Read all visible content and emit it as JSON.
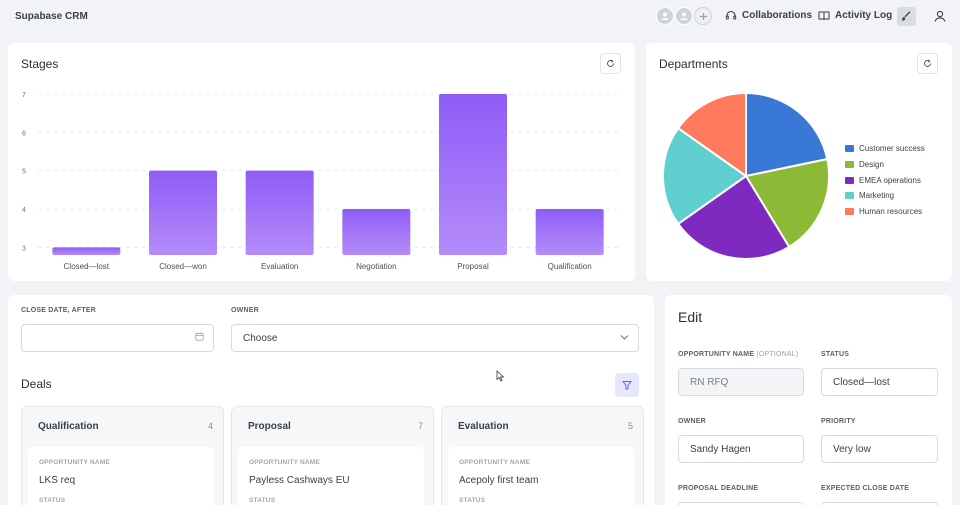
{
  "app": {
    "title": "Supabase CRM"
  },
  "topbar": {
    "collaborations_label": "Collaborations",
    "activity_log_label": "Activity Log"
  },
  "stages": {
    "title": "Stages",
    "chart_data": {
      "type": "bar",
      "categories": [
        "Closed—lost",
        "Closed—won",
        "Evaluation",
        "Negotiation",
        "Proposal",
        "Qualification"
      ],
      "values": [
        3,
        5,
        5,
        4,
        7,
        4
      ],
      "yticks": [
        3,
        4,
        5,
        6,
        7
      ],
      "ylim": [
        2.8,
        7
      ],
      "grid": true,
      "color": "#9b6bfb"
    }
  },
  "departments": {
    "title": "Departments",
    "chart_data": {
      "type": "pie",
      "labels": [
        "Customer success",
        "Design",
        "EMEA operations",
        "Marketing",
        "Human resources"
      ],
      "values": [
        20,
        18,
        22,
        18,
        14
      ],
      "colors": [
        "#3a78d6",
        "#8dba36",
        "#7e29c0",
        "#5fcfd0",
        "#ff7a5c"
      ],
      "legend": "right"
    }
  },
  "filters": {
    "close_date_label": "CLOSE DATE, AFTER",
    "close_date_value": "",
    "owner_label": "OWNER",
    "owner_value": "Choose"
  },
  "deals": {
    "title": "Deals",
    "columns": [
      {
        "title": "Qualification",
        "count": "4",
        "opportunity_label": "OPPORTUNITY NAME",
        "opportunity": "LKS req",
        "status_label": "STATUS"
      },
      {
        "title": "Proposal",
        "count": "7",
        "opportunity_label": "OPPORTUNITY NAME",
        "opportunity": "Payless Cashways EU",
        "status_label": "STATUS"
      },
      {
        "title": "Evaluation",
        "count": "5",
        "opportunity_label": "OPPORTUNITY NAME",
        "opportunity": "Acepoly first team",
        "status_label": "STATUS"
      }
    ]
  },
  "edit": {
    "title": "Edit",
    "opportunity_label": "OPPORTUNITY NAME",
    "opportunity_optional": "(OPTIONAL)",
    "opportunity_value": "RN RFQ",
    "status_label": "STATUS",
    "status_value": "Closed—lost",
    "owner_label": "OWNER",
    "owner_value": "Sandy Hagen",
    "priority_label": "PRIORITY",
    "priority_value": "Very low",
    "proposal_deadline_label": "PROPOSAL DEADLINE",
    "expected_close_label": "EXPECTED CLOSE DATE"
  }
}
